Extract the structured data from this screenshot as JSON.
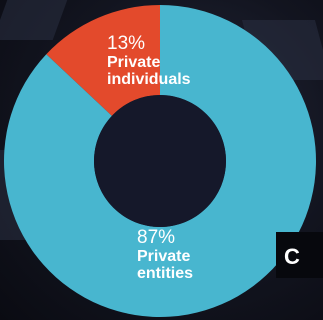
{
  "chart_data": {
    "type": "pie",
    "style": "donut",
    "slices": [
      {
        "name": "Private individuals",
        "value": 13,
        "label": "13%",
        "name_lines": [
          "Private",
          "individuals"
        ],
        "color": "#e34a2c"
      },
      {
        "name": "Private entities",
        "value": 87,
        "label": "87%",
        "name_lines": [
          "Private",
          "entities"
        ],
        "color": "#48b6cf"
      }
    ],
    "start_angle_deg": 0,
    "direction": "counterclockwise"
  },
  "overlay": {
    "text": "C"
  },
  "colors": {
    "background": "#12141f",
    "hole": "#15182a"
  }
}
